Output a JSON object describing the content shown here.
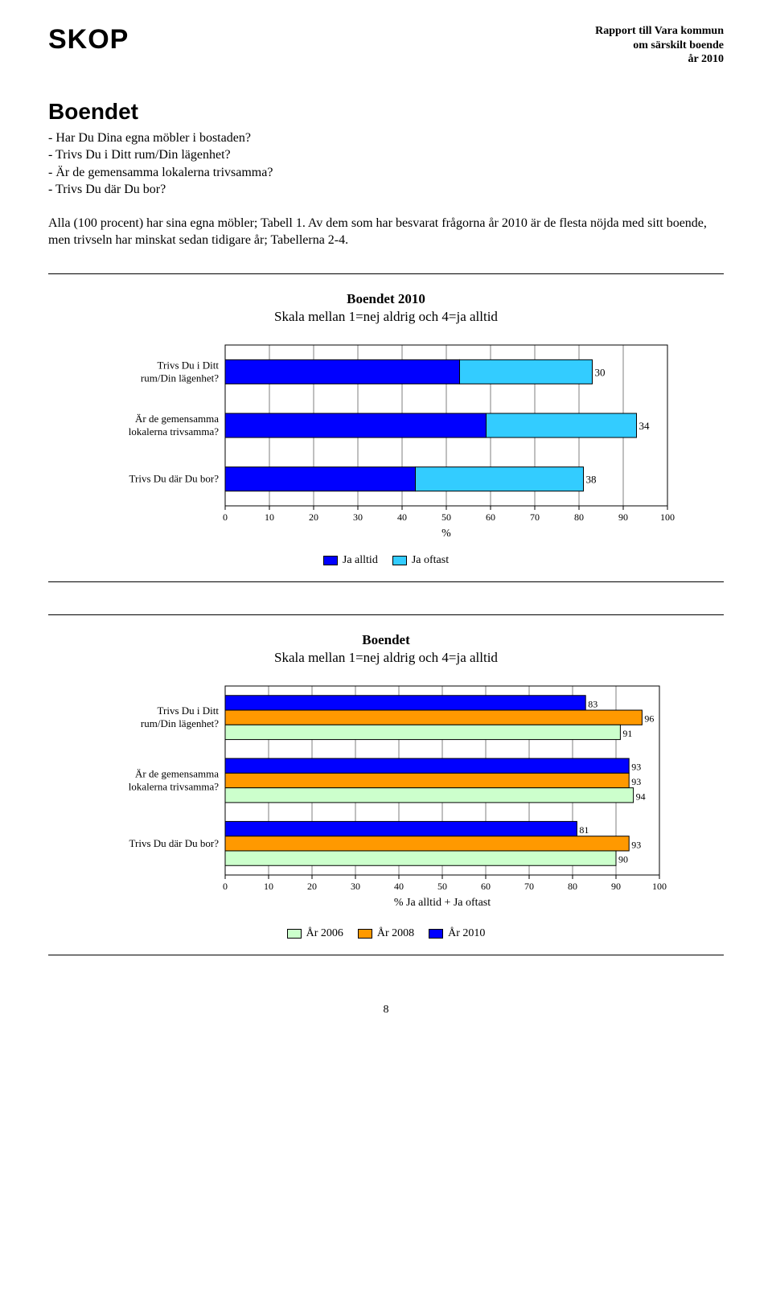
{
  "header": {
    "brand": "SKOP",
    "report_line1": "Rapport till Vara kommun",
    "report_line2": "om särskilt boende",
    "report_line3": "år 2010"
  },
  "section": {
    "title": "Boendet",
    "bullets": [
      "- Har Du Dina egna möbler i bostaden?",
      "- Trivs Du i Ditt rum/Din lägenhet?",
      "- Är de gemensamma lokalerna trivsamma?",
      "- Trivs Du där Du bor?"
    ],
    "paragraph": "Alla (100 procent) har sina egna möbler; Tabell 1. Av dem som har besvarat frågorna år 2010 är de flesta nöjda med sitt boende, men trivseln har minskat sedan tidigare år; Tabellerna 2-4."
  },
  "chart1": {
    "type": "stacked-bar-horizontal",
    "title_bold": "Boendet 2010",
    "title_sub": "Skala mellan 1=nej aldrig och 4=ja alltid",
    "categories": [
      "Trivs Du i Ditt rum/Din lägenhet?",
      "Är de gemensamma lokalerna trivsamma?",
      "Trivs Du där Du bor?"
    ],
    "series": [
      {
        "name": "Ja alltid",
        "color": "#0000ff",
        "values": [
          53,
          59,
          43
        ]
      },
      {
        "name": "Ja oftast",
        "color": "#33ccff",
        "values": [
          30,
          34,
          38
        ]
      }
    ],
    "xmin": 0,
    "xmax": 100,
    "xtick_step": 10,
    "xlabel": "%",
    "plot_bg": "#ffffff",
    "grid_color": "#000000",
    "bar_border": "#000000",
    "label_fontsize": 13,
    "tick_fontsize": 12,
    "value_fontsize": 13
  },
  "chart2": {
    "type": "grouped-bar-horizontal",
    "title_bold": "Boendet",
    "title_sub": "Skala mellan 1=nej aldrig och 4=ja alltid",
    "categories": [
      "Trivs Du i Ditt rum/Din lägenhet?",
      "Är de gemensamma lokalerna trivsamma?",
      "Trivs Du där Du bor?"
    ],
    "series": [
      {
        "name": "År 2010",
        "color": "#0000ff",
        "values": [
          83,
          93,
          81
        ]
      },
      {
        "name": "År 2008",
        "color": "#ff9900",
        "values": [
          96,
          93,
          93
        ]
      },
      {
        "name": "År 2006",
        "color": "#ccffcc",
        "values": [
          91,
          94,
          90
        ]
      }
    ],
    "legend_order": [
      "År 2006",
      "År 2008",
      "År 2010"
    ],
    "xmin": 0,
    "xmax": 100,
    "xtick_step": 10,
    "xlabel": "% Ja alltid + Ja oftast",
    "plot_bg": "#ffffff",
    "grid_color": "#000000",
    "bar_border": "#000000",
    "label_fontsize": 13,
    "tick_fontsize": 12,
    "value_fontsize": 12
  },
  "footer": {
    "page": "8"
  }
}
